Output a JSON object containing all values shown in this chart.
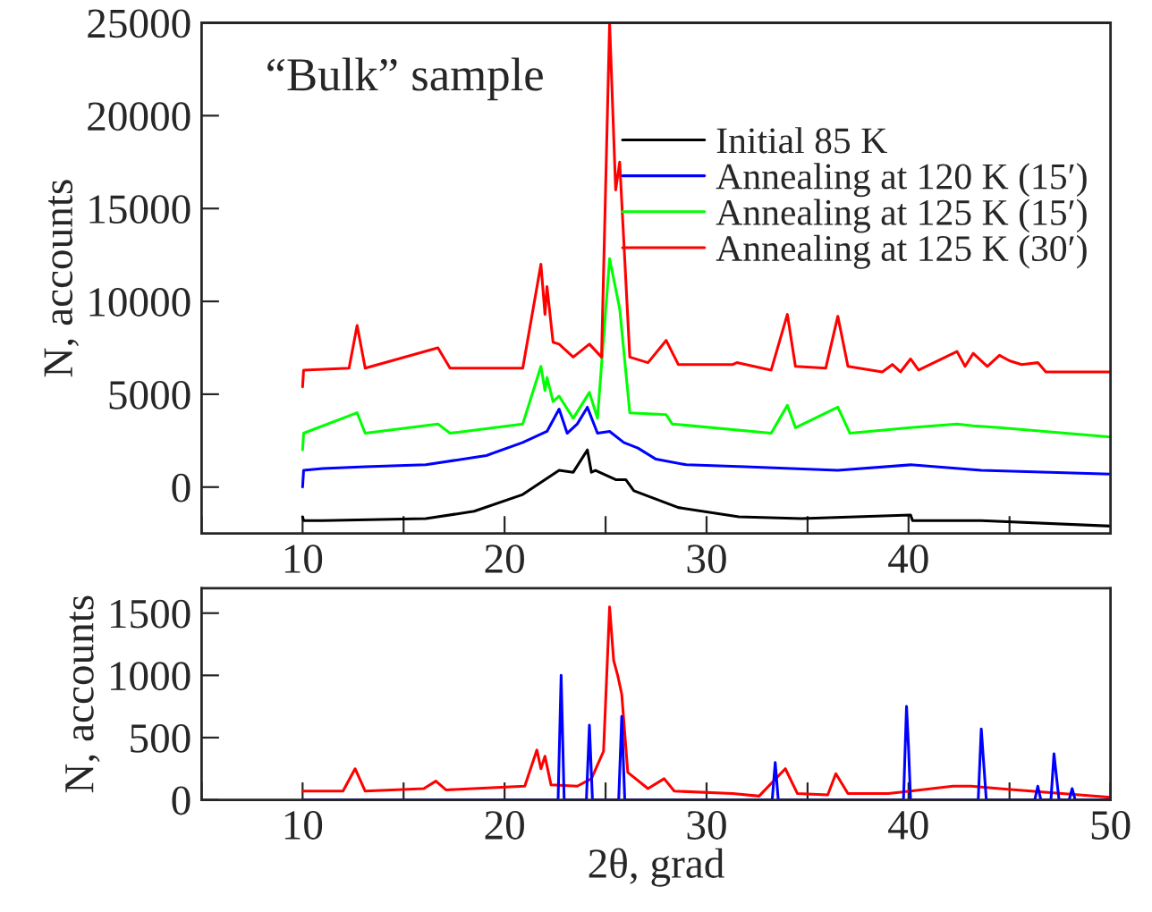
{
  "chart_data": [
    {
      "type": "line",
      "ylabel": "N, accounts",
      "annotations": [
        "“Bulk” sample"
      ],
      "legend": "upper right",
      "grid": false,
      "xlim": [
        5,
        50
      ],
      "xticks": [
        {
          "value": 5,
          "label": null
        },
        10,
        {
          "value": 15,
          "label": null
        },
        20,
        {
          "value": 25,
          "label": null
        },
        30,
        {
          "value": 35,
          "label": null
        },
        40,
        {
          "value": 45,
          "label": null
        }
      ],
      "ylim": [
        -2500,
        25000
      ],
      "yticks": [
        0,
        5000,
        10000,
        15000,
        20000,
        25000
      ],
      "series": [
        {
          "name": "Initial 85 K",
          "color": "#000000",
          "x": [
            10,
            10.05,
            11,
            16.1,
            18.5,
            20.9,
            22.7,
            23.4,
            24.1,
            24.3,
            24.5,
            25.5,
            26.0,
            26.4,
            28.6,
            31.6,
            34.7,
            40.1,
            40.2,
            43.6,
            50
          ],
          "values": [
            -1600,
            -1800,
            -1800,
            -1700,
            -1300,
            -400,
            900,
            800,
            2000,
            800,
            900,
            400,
            400,
            -200,
            -1100,
            -1600,
            -1700,
            -1500,
            -1800,
            -1800,
            -2100
          ]
        },
        {
          "name": "Annealing at 120 K (15′)",
          "color": "#0000ff",
          "x": [
            10,
            10.05,
            11,
            13.1,
            16.1,
            19.1,
            20.9,
            22.1,
            22.7,
            23.1,
            23.6,
            24.1,
            24.6,
            25.2,
            25.9,
            26.6,
            27.5,
            29.0,
            31.9,
            36.5,
            40.1,
            43.6,
            50
          ],
          "values": [
            0,
            900,
            1000,
            1100,
            1200,
            1700,
            2400,
            3000,
            4200,
            2900,
            3400,
            4300,
            2900,
            3000,
            2400,
            2100,
            1500,
            1200,
            1100,
            900,
            1200,
            900,
            700
          ]
        },
        {
          "name": "Annealing at 125 K (15′)",
          "color": "#00ff00",
          "x": [
            10,
            10.05,
            12.7,
            13.1,
            16.7,
            17.3,
            20.9,
            21.8,
            22.0,
            22.1,
            22.4,
            22.7,
            23.4,
            24.2,
            24.6,
            25.2,
            25.7,
            26.2,
            28.0,
            28.3,
            33.2,
            34.0,
            34.4,
            36.5,
            37.1,
            40.1,
            42.4,
            43.2,
            44.5,
            50
          ],
          "values": [
            2000,
            2900,
            4000,
            2900,
            3400,
            2900,
            3400,
            6500,
            5200,
            5900,
            4600,
            4900,
            3700,
            5100,
            3700,
            12300,
            9600,
            4000,
            3900,
            3400,
            2900,
            4400,
            3200,
            4300,
            2900,
            3200,
            3400,
            3300,
            3200,
            2700
          ]
        },
        {
          "name": "Annealing at 125 K (30′)",
          "color": "#ff0000",
          "x": [
            10,
            10.05,
            12.3,
            12.7,
            13.1,
            16.7,
            17.3,
            20.9,
            21.8,
            22.0,
            22.1,
            22.4,
            22.7,
            23.4,
            24.2,
            24.8,
            25.2,
            25.5,
            25.7,
            26.2,
            27.1,
            28.0,
            28.6,
            31.3,
            31.5,
            33.2,
            34.0,
            34.4,
            35.9,
            36.5,
            37.0,
            38.7,
            39.2,
            39.6,
            40.1,
            40.5,
            42.4,
            42.8,
            43.2,
            43.9,
            44.5,
            45.0,
            45.6,
            46.4,
            46.8,
            50
          ],
          "values": [
            5400,
            6300,
            6400,
            8700,
            6400,
            7500,
            6400,
            6400,
            12000,
            9300,
            10800,
            7800,
            7700,
            7000,
            7700,
            7000,
            25000,
            16000,
            17500,
            7000,
            6700,
            7900,
            6600,
            6600,
            6700,
            6300,
            9300,
            6500,
            6400,
            9200,
            6500,
            6200,
            6600,
            6200,
            6900,
            6300,
            7300,
            6500,
            7200,
            6500,
            7100,
            6800,
            6600,
            6700,
            6200,
            6200
          ]
        }
      ]
    },
    {
      "type": "line",
      "xlabel": "2θ, grad",
      "ylabel": "N, accounts",
      "grid": false,
      "xlim": [
        5,
        50
      ],
      "xticks": [
        {
          "value": 5,
          "label": null
        },
        10,
        {
          "value": 15,
          "label": null
        },
        20,
        {
          "value": 25,
          "label": null
        },
        30,
        {
          "value": 35,
          "label": null
        },
        40,
        {
          "value": 45,
          "label": null
        },
        50
      ],
      "ylim": [
        0,
        1700
      ],
      "yticks": [
        0,
        500,
        1000,
        1500
      ],
      "series": [
        {
          "color": "#ff0000",
          "x": [
            10,
            12.0,
            12.6,
            13.1,
            16.0,
            16.6,
            17.1,
            21.0,
            21.6,
            21.8,
            22.0,
            22.3,
            23.6,
            24.3,
            24.9,
            25.2,
            25.4,
            25.6,
            25.8,
            26.1,
            27.1,
            27.9,
            28.4,
            31.3,
            32.6,
            33.9,
            34.5,
            36.0,
            36.4,
            37.0,
            39.0,
            42.2,
            43.1,
            44.5,
            50
          ],
          "values": [
            70,
            70,
            250,
            70,
            90,
            150,
            80,
            110,
            400,
            250,
            350,
            120,
            110,
            170,
            390,
            1550,
            1120,
            1000,
            850,
            220,
            90,
            170,
            70,
            50,
            30,
            250,
            50,
            40,
            210,
            50,
            50,
            110,
            110,
            90,
            20
          ]
        },
        {
          "color": "#0000ff",
          "x": [
            10,
            22.65,
            22.8,
            22.95,
            24.05,
            24.2,
            24.35,
            25.65,
            25.8,
            25.95,
            33.25,
            33.4,
            33.55,
            39.75,
            39.9,
            40.0,
            40.1,
            43.45,
            43.6,
            43.7,
            43.85,
            46.25,
            46.4,
            46.55,
            47.05,
            47.2,
            47.3,
            47.45,
            47.95,
            48.1,
            48.25,
            50
          ],
          "values": [
            0,
            0,
            1000,
            0,
            0,
            600,
            0,
            0,
            670,
            0,
            0,
            300,
            0,
            0,
            750,
            420,
            0,
            0,
            570,
            340,
            0,
            0,
            110,
            0,
            0,
            370,
            220,
            0,
            0,
            90,
            0,
            0
          ]
        }
      ]
    }
  ]
}
